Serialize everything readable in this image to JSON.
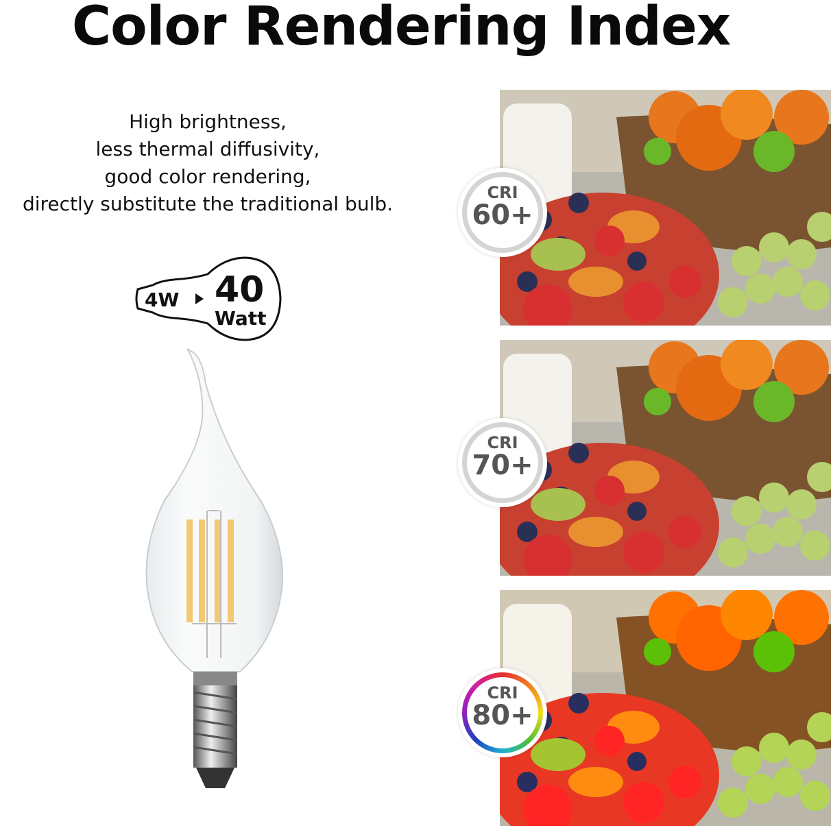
{
  "title": "Color Rendering Index",
  "description": [
    "High brightness,",
    "less thermal diffusivity,",
    "good color rendering,",
    "directly substitute the traditional bulb."
  ],
  "wattage": {
    "actual": "4W",
    "equivalent": "40",
    "unit": "Watt"
  },
  "panels": [
    {
      "label": "CRI",
      "value": "60+",
      "ring": "grey"
    },
    {
      "label": "CRI",
      "value": "70+",
      "ring": "grey"
    },
    {
      "label": "CRI",
      "value": "80+",
      "ring": "rainbow"
    }
  ]
}
